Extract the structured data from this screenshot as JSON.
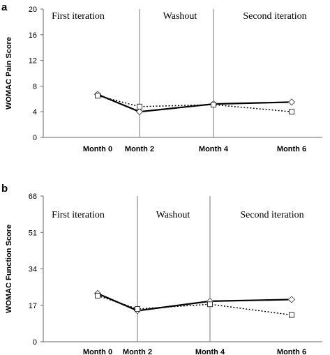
{
  "chart_data": [
    {
      "panel": "a",
      "type": "line",
      "ylabel": "WOMAC Pain Score",
      "categories": [
        "Month 0",
        "Month 2",
        "Month 4",
        "Month 6"
      ],
      "ylim": [
        0,
        20
      ],
      "yticks": [
        0,
        4,
        8,
        12,
        16,
        20
      ],
      "regions": [
        "First iteration",
        "Washout",
        "Second iteration"
      ],
      "series": [
        {
          "values": [
            6.7,
            4.0,
            5.2,
            5.5
          ],
          "line": "solid",
          "marker": "diamond"
        },
        {
          "values": [
            6.5,
            4.8,
            5.1,
            4.0
          ],
          "line": "dotted",
          "marker": "square"
        }
      ]
    },
    {
      "panel": "b",
      "type": "line",
      "ylabel": "WOMAC Function Score",
      "categories": [
        "Month 0",
        "Month 2",
        "Month 4",
        "Month 6"
      ],
      "ylim": [
        0,
        68
      ],
      "yticks": [
        0,
        17,
        34,
        51,
        68
      ],
      "regions": [
        "First iteration",
        "Washout",
        "Second iteration"
      ],
      "series": [
        {
          "values": [
            22.5,
            14.5,
            18.9,
            19.7
          ],
          "line": "solid",
          "marker": "diamond"
        },
        {
          "values": [
            21.5,
            15.3,
            17.5,
            12.5
          ],
          "line": "dotted",
          "marker": "square"
        }
      ]
    }
  ]
}
